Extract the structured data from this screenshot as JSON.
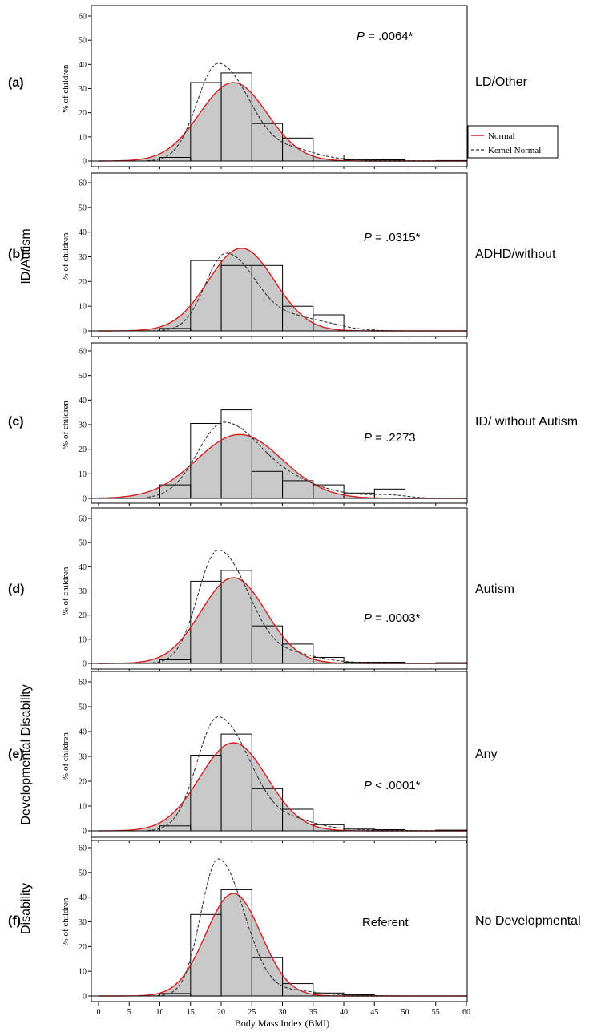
{
  "figure": {
    "x_axis_label": "Body Mass Index (BMI)",
    "y_axis_label": "% of children",
    "legend": [
      {
        "name": "Normal",
        "color": "#d62020",
        "style": "solid"
      },
      {
        "name": "Kernel Normal",
        "color": "#333333",
        "style": "dashed"
      }
    ],
    "side_labels": [
      "ID/Autism",
      "Developmental Disability",
      "Disability"
    ]
  },
  "chart_data": [
    {
      "type": "bar",
      "panel": "(a)",
      "group": "LD/Other",
      "p_value": "= .0064*",
      "xlim": [
        0,
        60
      ],
      "ylim": [
        0,
        60
      ],
      "bin_edges": [
        0,
        5,
        10,
        15,
        20,
        25,
        30,
        35,
        40,
        45,
        50,
        55,
        60
      ],
      "values": [
        0,
        0,
        1.5,
        32.5,
        36.5,
        15.5,
        9.5,
        2.5,
        0.5,
        0.5,
        0,
        0.2
      ],
      "normal": {
        "mean": 22.0,
        "peak": 32.5,
        "sd": 5.5
      },
      "kernel_peak": 40.5
    },
    {
      "type": "bar",
      "panel": "(b)",
      "group": "ADHD/without",
      "p_value": "= .0315*",
      "xlim": [
        0,
        60
      ],
      "ylim": [
        0,
        60
      ],
      "bin_edges": [
        0,
        5,
        10,
        15,
        20,
        25,
        30,
        35,
        40,
        45,
        50,
        55,
        60
      ],
      "values": [
        0,
        0,
        1,
        28.5,
        26.5,
        26.5,
        10,
        6.5,
        0.8,
        0,
        0,
        0
      ],
      "normal": {
        "mean": 23.3,
        "peak": 33.5,
        "sd": 5.4
      },
      "kernel_peak": 31.5
    },
    {
      "type": "bar",
      "panel": "(c)",
      "group": "ID/ without Autism",
      "p_value": "= .2273",
      "xlim": [
        0,
        60
      ],
      "ylim": [
        0,
        60
      ],
      "bin_edges": [
        0,
        5,
        10,
        15,
        20,
        25,
        30,
        35,
        40,
        45,
        50,
        55,
        60
      ],
      "values": [
        0,
        0,
        5.5,
        30.5,
        36,
        11,
        7.2,
        5.5,
        2.2,
        3.8,
        0,
        0
      ],
      "normal": {
        "mean": 23.0,
        "peak": 26.0,
        "sd": 7.0
      },
      "kernel_peak": 31.0
    },
    {
      "type": "bar",
      "panel": "(d)",
      "group": "Autism",
      "p_value": "= .0003*",
      "xlim": [
        0,
        60
      ],
      "ylim": [
        0,
        60
      ],
      "bin_edges": [
        0,
        5,
        10,
        15,
        20,
        25,
        30,
        35,
        40,
        45,
        50,
        55,
        60
      ],
      "values": [
        0,
        0,
        1.5,
        34,
        38.5,
        15.5,
        8,
        2.5,
        0.5,
        0.5,
        0,
        0.3
      ],
      "normal": {
        "mean": 22.0,
        "peak": 35.5,
        "sd": 5.3
      },
      "kernel_peak": 47.0
    },
    {
      "type": "bar",
      "panel": "(e)",
      "group": "Any",
      "p_value": "< .0001*",
      "xlim": [
        0,
        60
      ],
      "ylim": [
        0,
        60
      ],
      "bin_edges": [
        0,
        5,
        10,
        15,
        20,
        25,
        30,
        35,
        40,
        45,
        50,
        55,
        60
      ],
      "values": [
        0,
        0,
        2,
        30.5,
        39,
        17,
        8.7,
        2.5,
        0.7,
        0.5,
        0,
        0.3
      ],
      "normal": {
        "mean": 22.0,
        "peak": 35.5,
        "sd": 5.5
      },
      "kernel_peak": 46.0
    },
    {
      "type": "bar",
      "panel": "(f)",
      "group": "No Developmental",
      "p_value": "Referent",
      "xlim": [
        0,
        60
      ],
      "ylim": [
        0,
        60
      ],
      "bin_edges": [
        0,
        5,
        10,
        15,
        20,
        25,
        30,
        35,
        40,
        45,
        50,
        55,
        60
      ],
      "values": [
        0,
        0,
        1,
        33,
        43,
        15.5,
        5,
        1.2,
        0.5,
        0,
        0,
        0
      ],
      "normal": {
        "mean": 22.0,
        "peak": 41.5,
        "sd": 4.5
      },
      "kernel_peak": 55.5
    }
  ]
}
